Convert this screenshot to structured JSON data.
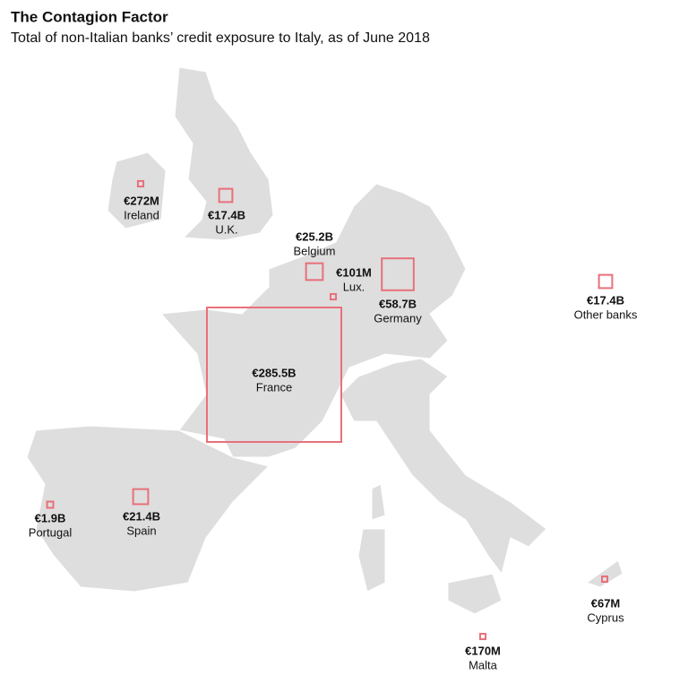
{
  "title": "The Contagion Factor",
  "subtitle": "Total of non-Italian banks’ credit exposure to Italy, as of June 2018",
  "items": [
    {
      "name": "Ireland",
      "value": 272000000,
      "value_label": "€272M"
    },
    {
      "name": "U.K.",
      "value": 17400000000,
      "value_label": "€17.4B"
    },
    {
      "name": "Belgium",
      "value": 25200000000,
      "value_label": "€25.2B"
    },
    {
      "name": "Lux.",
      "value": 101000000,
      "value_label": "€101M"
    },
    {
      "name": "Germany",
      "value": 58700000000,
      "value_label": "€58.7B"
    },
    {
      "name": "France",
      "value": 285500000000,
      "value_label": "€285.5B"
    },
    {
      "name": "Portugal",
      "value": 1900000000,
      "value_label": "€1.9B"
    },
    {
      "name": "Spain",
      "value": 21400000000,
      "value_label": "€21.4B"
    },
    {
      "name": "Other banks",
      "value": 17400000000,
      "value_label": "€17.4B"
    },
    {
      "name": "Cyprus",
      "value": 67000000,
      "value_label": "€67M"
    },
    {
      "name": "Malta",
      "value": 170000000,
      "value_label": "€170M"
    }
  ]
}
